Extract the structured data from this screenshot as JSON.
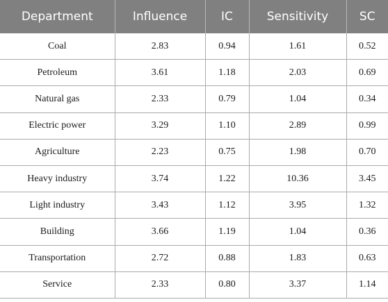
{
  "table": {
    "headers": [
      "Department",
      "Influence",
      "IC",
      "Sensitivity",
      "SC"
    ],
    "rows": [
      [
        "Coal",
        "2.83",
        "0.94",
        "1.61",
        "0.52"
      ],
      [
        "Petroleum",
        "3.61",
        "1.18",
        "2.03",
        "0.69"
      ],
      [
        "Natural gas",
        "2.33",
        "0.79",
        "1.04",
        "0.34"
      ],
      [
        "Electric power",
        "3.29",
        "1.10",
        "2.89",
        "0.99"
      ],
      [
        "Agriculture",
        "2.23",
        "0.75",
        "1.98",
        "0.70"
      ],
      [
        "Heavy industry",
        "3.74",
        "1.22",
        "10.36",
        "3.45"
      ],
      [
        "Light industry",
        "3.43",
        "1.12",
        "3.95",
        "1.32"
      ],
      [
        "Building",
        "3.66",
        "1.19",
        "1.04",
        "0.36"
      ],
      [
        "Transportation",
        "2.72",
        "0.88",
        "1.83",
        "0.63"
      ],
      [
        "Service",
        "2.33",
        "0.80",
        "3.37",
        "1.14"
      ]
    ]
  },
  "colors": {
    "header_background": "#808080",
    "header_text": "#ffffff",
    "grid_line": "#aaaaaa"
  }
}
